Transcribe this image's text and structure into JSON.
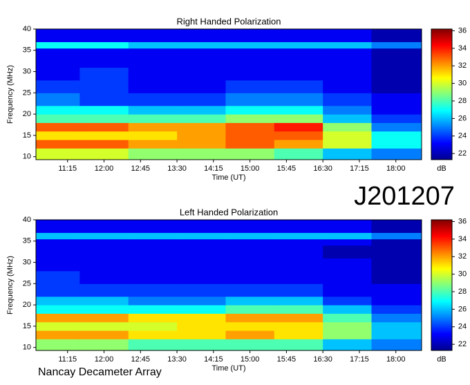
{
  "header": {
    "code": "J201207",
    "footer": "Nancay Decameter Array"
  },
  "chart_data": [
    {
      "type": "heatmap",
      "title": "Right Handed Polarization",
      "xlabel": "Time (UT)",
      "ylabel": "Frequency (MHz)",
      "colorbar_label": "dB",
      "xlim": [
        10.6,
        18.53
      ],
      "ylim": [
        9.3,
        40
      ],
      "clim": [
        21.3,
        36.2
      ],
      "xticks": [
        {
          "value": 11.25,
          "label": "11:15"
        },
        {
          "value": 12,
          "label": "12:00"
        },
        {
          "value": 12.75,
          "label": "12:45"
        },
        {
          "value": 13.5,
          "label": "13:30"
        },
        {
          "value": 14.25,
          "label": "14:15"
        },
        {
          "value": 15,
          "label": "15:00"
        },
        {
          "value": 15.75,
          "label": "15:45"
        },
        {
          "value": 16.5,
          "label": "16:30"
        },
        {
          "value": 17.25,
          "label": "17:15"
        },
        {
          "value": 18,
          "label": "18:00"
        }
      ],
      "yticks": [
        10,
        15,
        20,
        25,
        30,
        35,
        40
      ],
      "cticks": [
        22,
        24,
        26,
        28,
        30,
        32,
        34,
        36
      ],
      "xbins": [
        10.6,
        11.5,
        12.5,
        13.5,
        14.5,
        15.5,
        16.5,
        17.5,
        18.53
      ],
      "ybins": [
        9.3,
        12,
        14,
        16,
        18,
        20,
        22,
        25,
        28,
        31,
        34,
        35.5,
        37,
        40
      ],
      "z": [
        [
          30,
          30,
          29,
          29,
          29,
          28,
          26,
          25
        ],
        [
          33,
          33,
          32,
          32,
          33,
          32,
          30,
          27
        ],
        [
          31,
          31,
          31,
          32,
          33,
          33,
          30,
          27
        ],
        [
          33,
          33,
          32,
          32,
          33,
          34,
          29,
          25
        ],
        [
          28,
          28,
          28,
          28,
          29,
          29,
          26,
          24
        ],
        [
          27,
          27,
          26,
          26,
          27,
          27,
          25,
          23
        ],
        [
          25,
          24,
          24,
          24,
          25,
          25,
          24,
          23
        ],
        [
          24,
          24,
          23,
          23,
          24,
          24,
          23,
          22
        ],
        [
          23,
          24,
          23,
          23,
          23,
          23,
          23,
          22
        ],
        [
          23,
          23,
          23,
          23,
          23,
          23,
          23,
          22
        ],
        [
          23,
          23,
          23,
          23,
          23,
          23,
          23,
          22
        ],
        [
          27,
          27,
          26,
          26,
          26,
          26,
          26,
          25
        ],
        [
          23,
          23,
          23,
          23,
          23,
          23,
          23,
          22
        ]
      ]
    },
    {
      "type": "heatmap",
      "title": "Left Handed Polarization",
      "xlabel": "Time (UT)",
      "ylabel": "Frequency (MHz)",
      "colorbar_label": "dB",
      "xlim": [
        10.6,
        18.53
      ],
      "ylim": [
        9.3,
        40
      ],
      "clim": [
        21.3,
        36.2
      ],
      "xticks": [
        {
          "value": 11.25,
          "label": "11:15"
        },
        {
          "value": 12,
          "label": "12:00"
        },
        {
          "value": 12.75,
          "label": "12:45"
        },
        {
          "value": 13.5,
          "label": "13:30"
        },
        {
          "value": 14.25,
          "label": "14:15"
        },
        {
          "value": 15,
          "label": "15:00"
        },
        {
          "value": 15.75,
          "label": "15:45"
        },
        {
          "value": 16.5,
          "label": "16:30"
        },
        {
          "value": 17.25,
          "label": "17:15"
        },
        {
          "value": 18,
          "label": "18:00"
        }
      ],
      "yticks": [
        10,
        15,
        20,
        25,
        30,
        35,
        40
      ],
      "cticks": [
        22,
        24,
        26,
        28,
        30,
        32,
        34,
        36
      ],
      "xbins": [
        10.6,
        11.5,
        12.5,
        13.5,
        14.5,
        15.5,
        16.5,
        17.5,
        18.53
      ],
      "ybins": [
        9.3,
        12,
        14,
        16,
        18,
        20,
        22,
        25,
        28,
        31,
        34,
        35.5,
        37,
        40
      ],
      "z": [
        [
          29,
          29,
          28,
          28,
          28,
          28,
          26,
          25
        ],
        [
          32,
          32,
          31,
          31,
          32,
          31,
          29,
          26
        ],
        [
          30,
          30,
          30,
          31,
          31,
          31,
          29,
          26
        ],
        [
          32,
          32,
          31,
          31,
          32,
          32,
          28,
          25
        ],
        [
          27,
          27,
          27,
          27,
          28,
          28,
          26,
          24
        ],
        [
          26,
          26,
          25,
          25,
          26,
          26,
          24,
          23
        ],
        [
          24,
          24,
          24,
          24,
          24,
          24,
          23,
          23
        ],
        [
          24,
          23,
          23,
          23,
          23,
          23,
          23,
          22
        ],
        [
          23,
          23,
          23,
          23,
          23,
          23,
          23,
          22
        ],
        [
          23,
          23,
          23,
          23,
          23,
          23,
          22,
          22
        ],
        [
          23,
          23,
          23,
          23,
          23,
          23,
          23,
          22
        ],
        [
          26,
          26,
          26,
          26,
          26,
          26,
          26,
          25
        ],
        [
          23,
          23,
          23,
          23,
          23,
          23,
          23,
          22
        ]
      ]
    }
  ]
}
